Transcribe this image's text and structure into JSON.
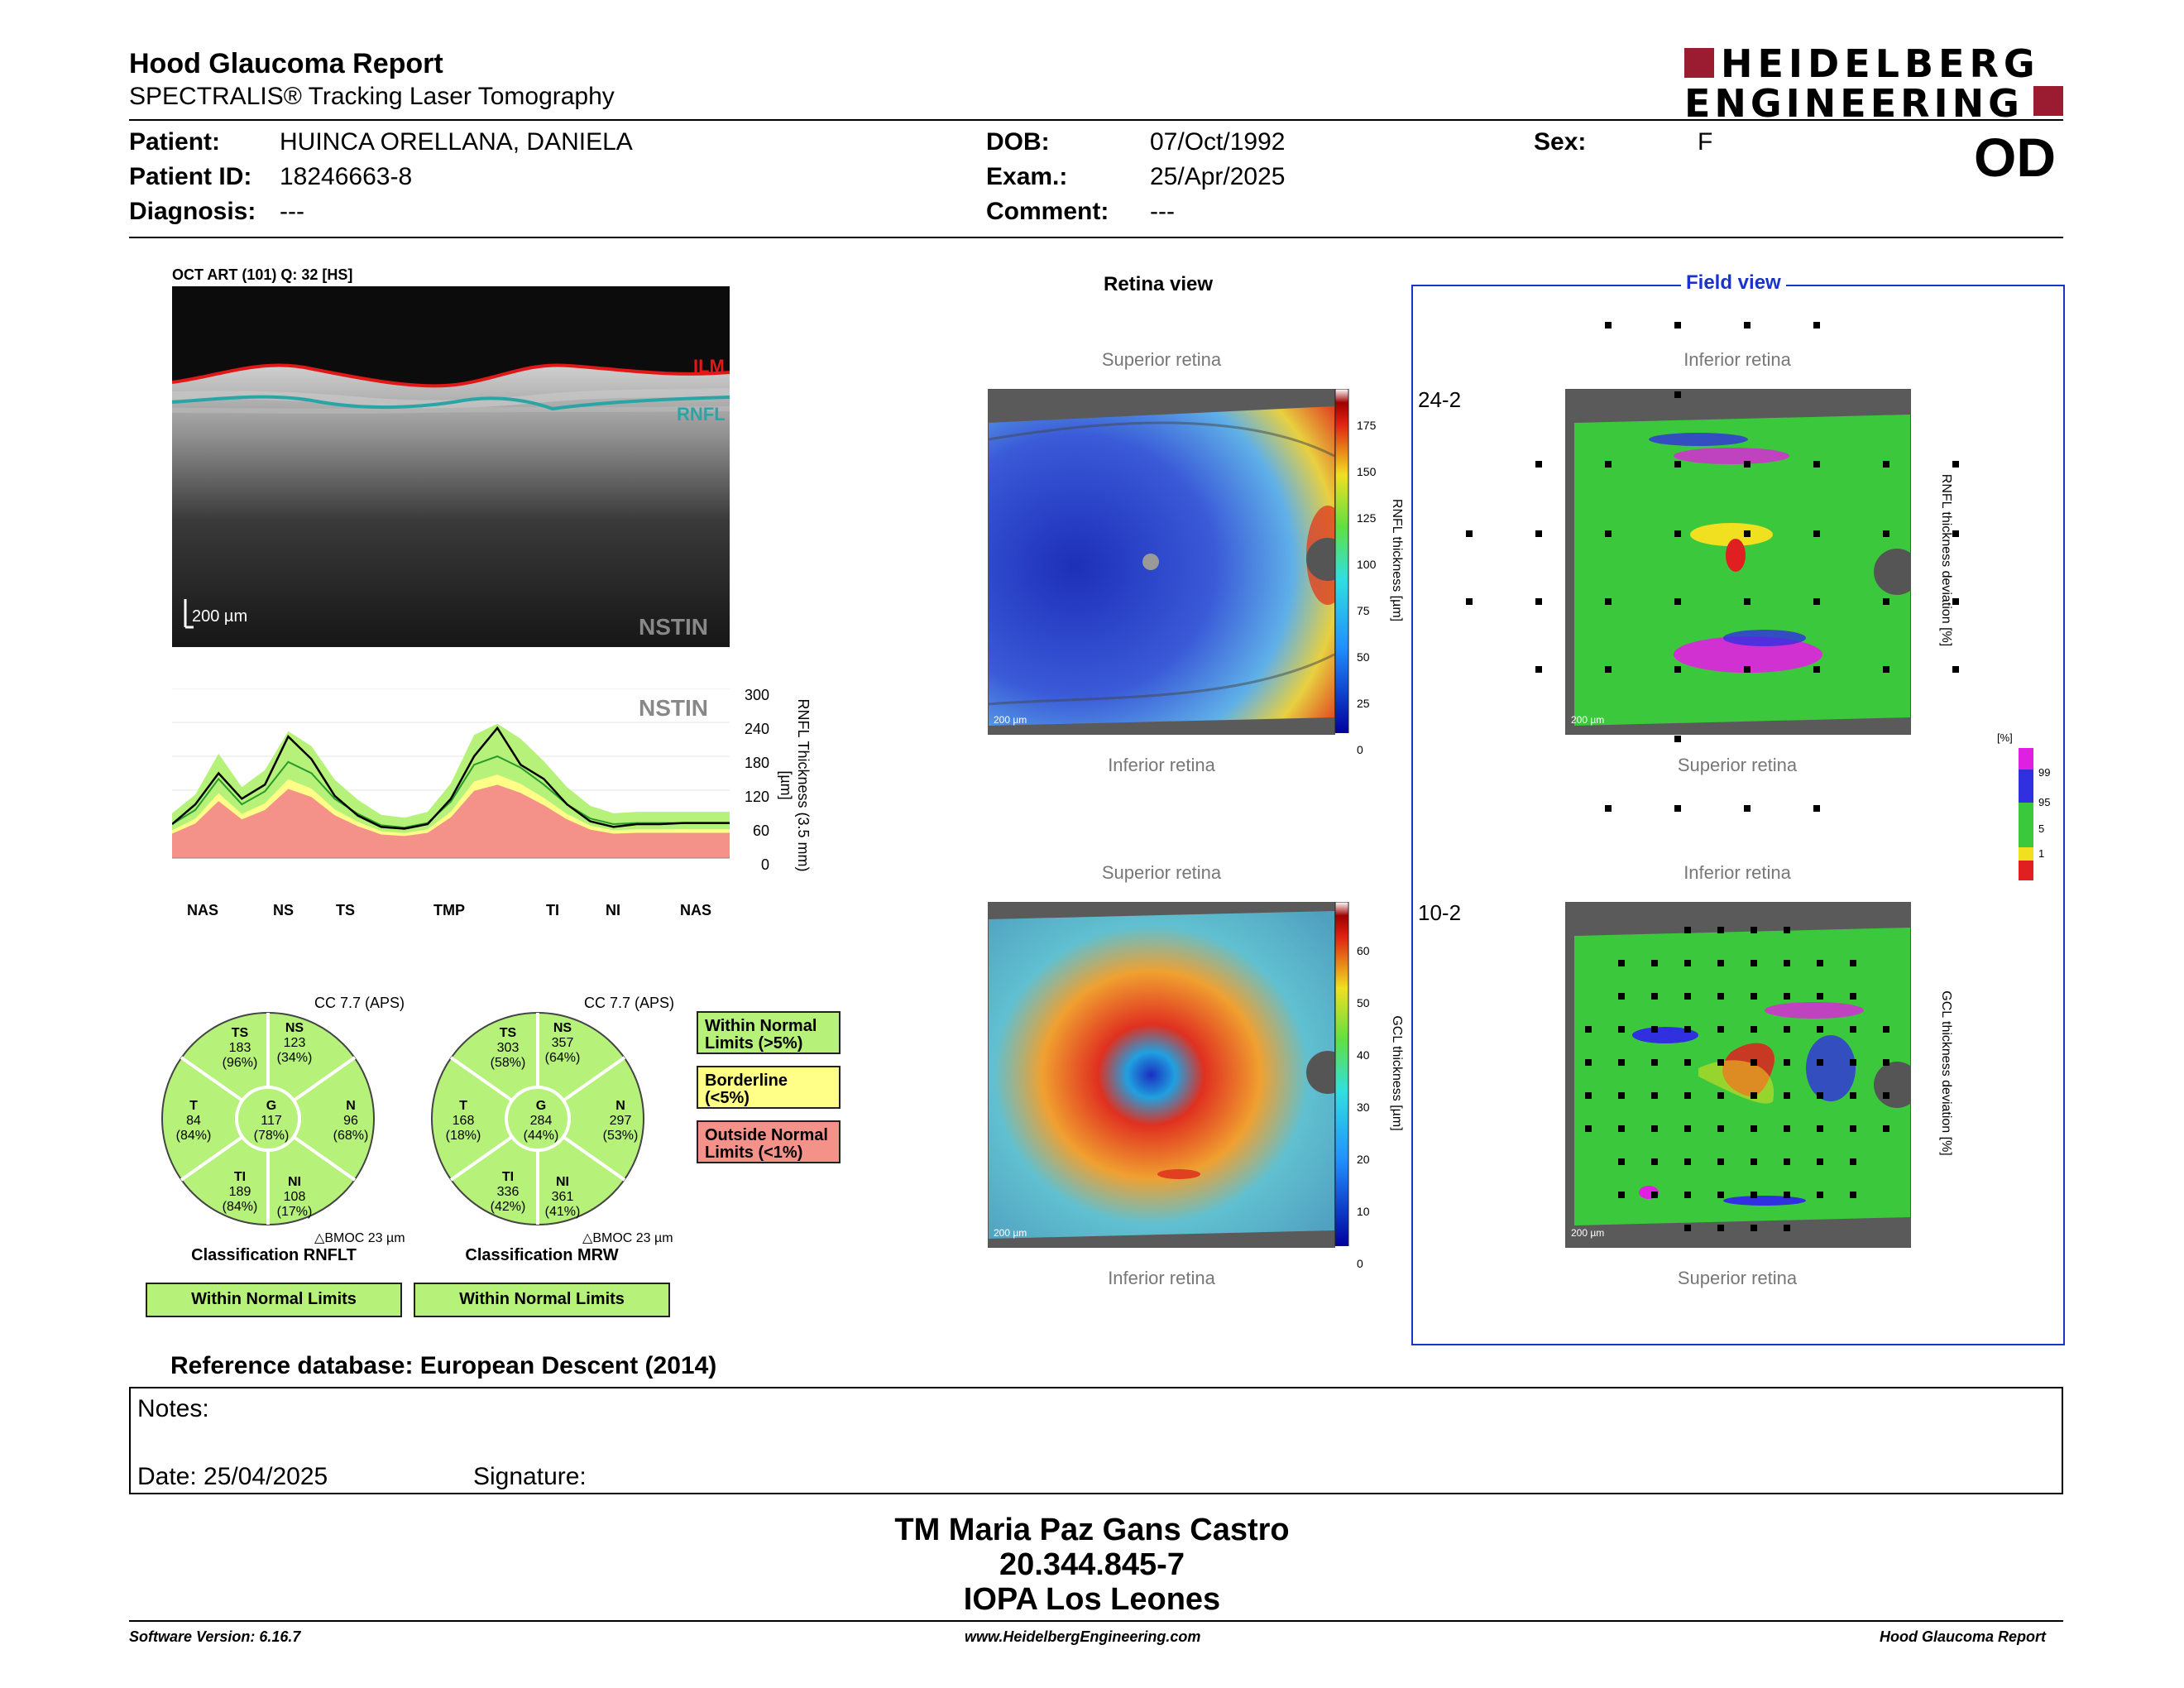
{
  "header": {
    "title": "Hood Glaucoma Report",
    "subtitle": "SPECTRALIS® Tracking Laser Tomography",
    "brand_line1": "HEIDELBERG",
    "brand_line2": "ENGINEERING",
    "eye": "OD"
  },
  "patient": {
    "patient_label": "Patient:",
    "patient_value": "HUINCA ORELLANA, DANIELA",
    "id_label": "Patient ID:",
    "id_value": "18246663-8",
    "diagnosis_label": "Diagnosis:",
    "diagnosis_value": "---",
    "dob_label": "DOB:",
    "dob_value": "07/Oct/1992",
    "exam_label": "Exam.:",
    "exam_value": "25/Apr/2025",
    "comment_label": "Comment:",
    "comment_value": "---",
    "sex_label": "Sex:",
    "sex_value": "F"
  },
  "oct": {
    "caption": "OCT ART (101) Q: 32 [HS]",
    "ilm": "ILM",
    "rnfl": "RNFL",
    "scale": "200 µm",
    "nstin": "NSTIN"
  },
  "profile": {
    "nstin": "NSTIN",
    "y_ticks": [
      "300",
      "240",
      "180",
      "120",
      "60",
      "0"
    ],
    "y_label": "RNFL Thickness (3.5 mm) [µm]",
    "x_labels": [
      "NAS",
      "NS",
      "TS",
      "TMP",
      "TI",
      "NI",
      "NAS"
    ]
  },
  "chart_data": {
    "type": "line",
    "x": [
      0,
      15,
      30,
      45,
      60,
      75,
      90,
      105,
      120,
      135,
      150,
      165,
      180,
      195,
      210,
      225,
      240,
      255,
      270,
      285,
      300,
      315,
      330,
      345,
      360
    ],
    "series": [
      {
        "values": [
          60,
          95,
          150,
          105,
          130,
          215,
          175,
          110,
          75,
          55,
          52,
          60,
          105,
          180,
          230,
          165,
          140,
          95,
          65,
          55,
          60,
          60,
          62,
          62,
          62
        ]
      },
      {
        "values": [
          60,
          85,
          140,
          95,
          118,
          170,
          150,
          105,
          78,
          58,
          54,
          62,
          100,
          165,
          180,
          160,
          130,
          95,
          70,
          60,
          62,
          62,
          62,
          62,
          62
        ]
      }
    ],
    "ylim": [
      0,
      300
    ]
  },
  "circles": [
    {
      "cc": "CC 7.7 (APS)",
      "sectors": {
        "TS": {
          "label": "TS",
          "v": "183",
          "p": "(96%)"
        },
        "NS": {
          "label": "NS",
          "v": "123",
          "p": "(34%)"
        },
        "T": {
          "label": "T",
          "v": "84",
          "p": "(84%)"
        },
        "G": {
          "label": "G",
          "v": "117",
          "p": "(78%)"
        },
        "N": {
          "label": "N",
          "v": "96",
          "p": "(68%)"
        },
        "TI": {
          "label": "TI",
          "v": "189",
          "p": "(84%)"
        },
        "NI": {
          "label": "NI",
          "v": "108",
          "p": "(17%)"
        }
      },
      "bmoc": "BMOC 23 µm",
      "classification": "Classification RNFLT",
      "result": "Within Normal Limits"
    },
    {
      "cc": "CC 7.7 (APS)",
      "sectors": {
        "TS": {
          "label": "TS",
          "v": "303",
          "p": "(58%)"
        },
        "NS": {
          "label": "NS",
          "v": "357",
          "p": "(64%)"
        },
        "T": {
          "label": "T",
          "v": "168",
          "p": "(18%)"
        },
        "G": {
          "label": "G",
          "v": "284",
          "p": "(44%)"
        },
        "N": {
          "label": "N",
          "v": "297",
          "p": "(53%)"
        },
        "TI": {
          "label": "TI",
          "v": "336",
          "p": "(42%)"
        },
        "NI": {
          "label": "NI",
          "v": "361",
          "p": "(41%)"
        }
      },
      "bmoc": "BMOC 23 µm",
      "classification": "Classification MRW",
      "result": "Within Normal Limits"
    }
  ],
  "legend": {
    "normal": "Within Normal Limits (>5%)",
    "borderline": "Borderline (<5%)",
    "outside": "Outside Normal Limits (<1%)"
  },
  "retina_view": {
    "title": "Retina view",
    "top1": "Superior retina",
    "bottom1": "Inferior retina",
    "top2": "Superior retina",
    "bottom2": "Inferior retina",
    "scale": "200 µm",
    "rnfl_ticks": [
      "175",
      "150",
      "125",
      "100",
      "75",
      "50",
      "25",
      "0"
    ],
    "rnfl_label": "RNFL thickness [µm]",
    "gcl_ticks": [
      "60",
      "50",
      "40",
      "30",
      "20",
      "10",
      "0"
    ],
    "gcl_label": "GCL thickness [µm]"
  },
  "field_view": {
    "title": "Field view",
    "top1": "Inferior retina",
    "bottom1": "Superior retina",
    "top2": "Inferior retina",
    "bottom2": "Superior retina",
    "grid1": "24-2",
    "grid2": "10-2",
    "label1": "RNFL thickness deviation [%]",
    "label2": "GCL thickness deviation [%]",
    "pct": "[%]",
    "pct_ticks": [
      "99",
      "95",
      "5",
      "1"
    ]
  },
  "reference": "Reference database: European Descent (2014)",
  "notes": {
    "label": "Notes:",
    "date": "Date: 25/04/2025",
    "signature": "Signature:"
  },
  "signer": {
    "name": "TM Maria Paz Gans Castro",
    "id": "20.344.845-7",
    "place": "IOPA Los Leones"
  },
  "footer": {
    "version": "Software Version: 6.16.7",
    "url": "www.HeidelbergEngineering.com",
    "report": "Hood Glaucoma Report"
  },
  "colors": {
    "normal": "#b6f27a",
    "borderline": "#ffff88",
    "outside": "#f4928a",
    "brand": "#9b1b30",
    "field_border": "#1a33c8"
  }
}
